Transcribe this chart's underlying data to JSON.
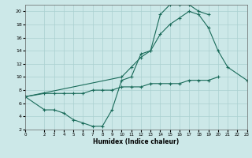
{
  "xlabel": "Humidex (Indice chaleur)",
  "bg_color": "#cce8e8",
  "grid_color": "#aad0d0",
  "line_color": "#1a6b5a",
  "xlim": [
    0,
    23
  ],
  "ylim": [
    2,
    21
  ],
  "yticks": [
    2,
    4,
    6,
    8,
    10,
    12,
    14,
    16,
    18,
    20
  ],
  "xticks": [
    0,
    2,
    3,
    4,
    5,
    6,
    7,
    8,
    9,
    10,
    11,
    12,
    13,
    14,
    15,
    16,
    17,
    18,
    19,
    20,
    21,
    22,
    23
  ],
  "line1_x": [
    0,
    2,
    3,
    4,
    5,
    6,
    7,
    8,
    9,
    10,
    11,
    12,
    13,
    14,
    15,
    16,
    17,
    18,
    19
  ],
  "line1_y": [
    7,
    5,
    5,
    4.5,
    3.5,
    3,
    2.5,
    2.5,
    5,
    9.5,
    10,
    13.5,
    14,
    19.5,
    21,
    21,
    21,
    20,
    19.5
  ],
  "line2_x": [
    0,
    10,
    11,
    12,
    13,
    14,
    15,
    16,
    17,
    18,
    19,
    20,
    21,
    23
  ],
  "line2_y": [
    7,
    10,
    11.5,
    13,
    14,
    16.5,
    18,
    19,
    20,
    19.5,
    17.5,
    14,
    11.5,
    9.5
  ],
  "line3_x": [
    0,
    2,
    3,
    4,
    5,
    6,
    7,
    8,
    9,
    10,
    11,
    12,
    13,
    14,
    15,
    16,
    17,
    18,
    19,
    20
  ],
  "line3_y": [
    7,
    7.5,
    7.5,
    7.5,
    7.5,
    7.5,
    8,
    8,
    8,
    8.5,
    8.5,
    8.5,
    9,
    9,
    9,
    9,
    9.5,
    9.5,
    9.5,
    10
  ]
}
